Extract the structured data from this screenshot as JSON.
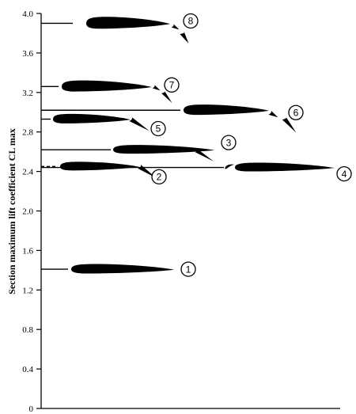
{
  "chart_data": {
    "type": "scatter",
    "ylabel": "Section maximum  lift coefficient CL max",
    "xlabel": "",
    "ylim": [
      0,
      4.0
    ],
    "yticks": [
      "0",
      "0.4",
      "0.8",
      "1.2",
      "1.6",
      "2.0",
      "2.4",
      "2.8",
      "3.2",
      "3.6",
      "4.0"
    ],
    "grid": false,
    "configurations": [
      {
        "marker": "1",
        "cl_max": 1.41,
        "style": "plain-airfoil"
      },
      {
        "marker": "2",
        "cl_max": 2.45,
        "style": "plain-flap"
      },
      {
        "marker": "3",
        "cl_max": 2.62,
        "style": "split-flap"
      },
      {
        "marker": "4",
        "cl_max": 2.44,
        "style": "leading-edge-slat"
      },
      {
        "marker": "5",
        "cl_max": 2.93,
        "style": "slotted-flap"
      },
      {
        "marker": "6",
        "cl_max": 3.02,
        "style": "slat-and-slotted-flap"
      },
      {
        "marker": "7",
        "cl_max": 3.26,
        "style": "double-slotted-flap"
      },
      {
        "marker": "8",
        "cl_max": 3.9,
        "style": "triple-slotted-flap"
      }
    ]
  }
}
